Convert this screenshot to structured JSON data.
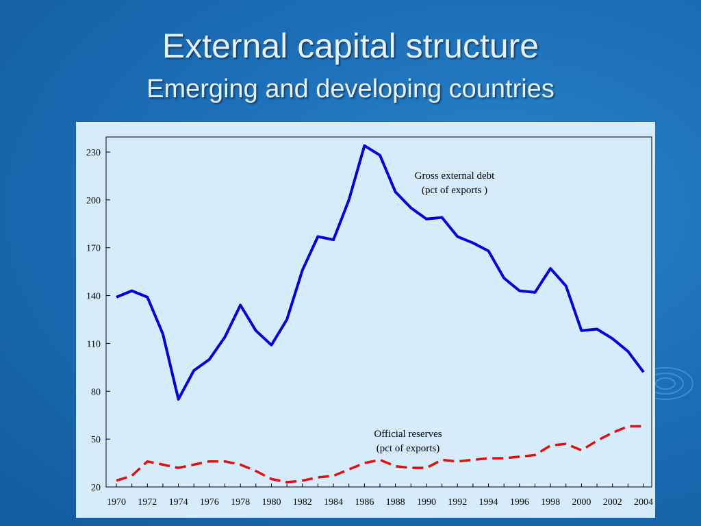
{
  "slide": {
    "title": "External capital structure",
    "subtitle": "Emerging and developing countries"
  },
  "chart_data": {
    "type": "line",
    "x": [
      1970,
      1971,
      1972,
      1973,
      1974,
      1975,
      1976,
      1977,
      1978,
      1979,
      1980,
      1981,
      1982,
      1983,
      1984,
      1985,
      1986,
      1987,
      1988,
      1989,
      1990,
      1991,
      1992,
      1993,
      1994,
      1995,
      1996,
      1997,
      1998,
      1999,
      2000,
      2001,
      2002,
      2003,
      2004
    ],
    "series": [
      {
        "name": "Gross external debt (pct of exports )",
        "annotation_lines": [
          "Gross external debt",
          "(pct of exports )"
        ],
        "color": "#0000e0",
        "style": "solid",
        "values": [
          139,
          143,
          139,
          116,
          75,
          93,
          100,
          114,
          134,
          118,
          109,
          125,
          156,
          177,
          175,
          200,
          234,
          228,
          205,
          195,
          188,
          189,
          177,
          173,
          168,
          151,
          143,
          142,
          157,
          146,
          118,
          119,
          113,
          105,
          92
        ]
      },
      {
        "name": "Official reserves (pct of exports)",
        "annotation_lines": [
          "Official reserves",
          "(pct of exports)"
        ],
        "color": "#e01010",
        "style": "dashed",
        "values": [
          24,
          27,
          36,
          34,
          32,
          34,
          36,
          36,
          34,
          30,
          25,
          23,
          24,
          26,
          27,
          31,
          35,
          37,
          33,
          32,
          32,
          37,
          36,
          37,
          38,
          38,
          39,
          40,
          46,
          47,
          43,
          49,
          54,
          58,
          58
        ]
      }
    ],
    "xticks": [
      1970,
      1972,
      1974,
      1976,
      1978,
      1980,
      1982,
      1984,
      1986,
      1988,
      1990,
      1992,
      1994,
      1996,
      1998,
      2000,
      2002,
      2004
    ],
    "yticks": [
      20,
      50,
      80,
      110,
      140,
      170,
      200,
      230
    ],
    "xlim": [
      1970,
      2004
    ],
    "ylim": [
      20,
      240
    ],
    "xlabel": "",
    "ylabel": "",
    "grid": false
  }
}
